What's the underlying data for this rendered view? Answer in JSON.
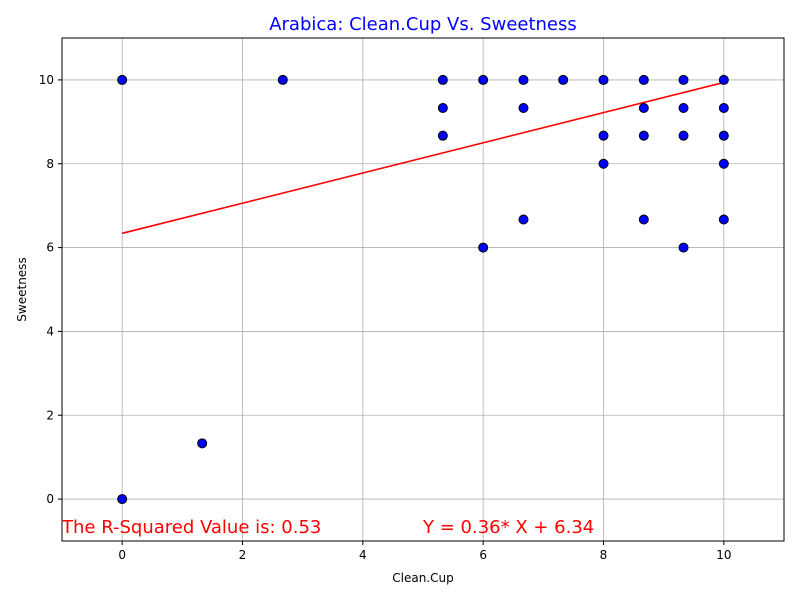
{
  "chart_data": {
    "type": "scatter",
    "title": "Arabica: Clean.Cup Vs. Sweetness",
    "xlabel": "Clean.Cup",
    "ylabel": "Sweetness",
    "xlim": [
      -1,
      11
    ],
    "ylim": [
      -1,
      11
    ],
    "xticks": [
      0,
      2,
      4,
      6,
      8,
      10
    ],
    "yticks": [
      0,
      2,
      4,
      6,
      8,
      10
    ],
    "grid": true,
    "colors": {
      "title": "#0000ff",
      "point_fill": "#0000ff",
      "point_edge": "#000000",
      "regression_line": "#ff0000",
      "annotation": "#ff0000",
      "grid": "#b0b0b0"
    },
    "points": [
      {
        "x": 0,
        "y": 10
      },
      {
        "x": 0,
        "y": 0
      },
      {
        "x": 1.33,
        "y": 1.33
      },
      {
        "x": 2.67,
        "y": 10
      },
      {
        "x": 5.33,
        "y": 10
      },
      {
        "x": 5.33,
        "y": 9.33
      },
      {
        "x": 5.33,
        "y": 8.67
      },
      {
        "x": 6,
        "y": 10
      },
      {
        "x": 6,
        "y": 6
      },
      {
        "x": 6.67,
        "y": 10
      },
      {
        "x": 6.67,
        "y": 9.33
      },
      {
        "x": 6.67,
        "y": 6.67
      },
      {
        "x": 7.33,
        "y": 10
      },
      {
        "x": 8,
        "y": 10
      },
      {
        "x": 8,
        "y": 8.67
      },
      {
        "x": 8,
        "y": 8
      },
      {
        "x": 8.67,
        "y": 10
      },
      {
        "x": 8.67,
        "y": 9.33
      },
      {
        "x": 8.67,
        "y": 8.67
      },
      {
        "x": 8.67,
        "y": 6.67
      },
      {
        "x": 9.33,
        "y": 10
      },
      {
        "x": 9.33,
        "y": 9.33
      },
      {
        "x": 9.33,
        "y": 8.67
      },
      {
        "x": 9.33,
        "y": 6
      },
      {
        "x": 10,
        "y": 10
      },
      {
        "x": 10,
        "y": 9.33
      },
      {
        "x": 10,
        "y": 8.67
      },
      {
        "x": 10,
        "y": 8
      },
      {
        "x": 10,
        "y": 6.67
      }
    ],
    "regression": {
      "slope": 0.36,
      "intercept": 6.34,
      "x_range": [
        0,
        10
      ]
    },
    "annotations": {
      "r_squared": "The R-Squared Value is: 0.53",
      "equation": "Y = 0.36* X + 6.34"
    }
  }
}
